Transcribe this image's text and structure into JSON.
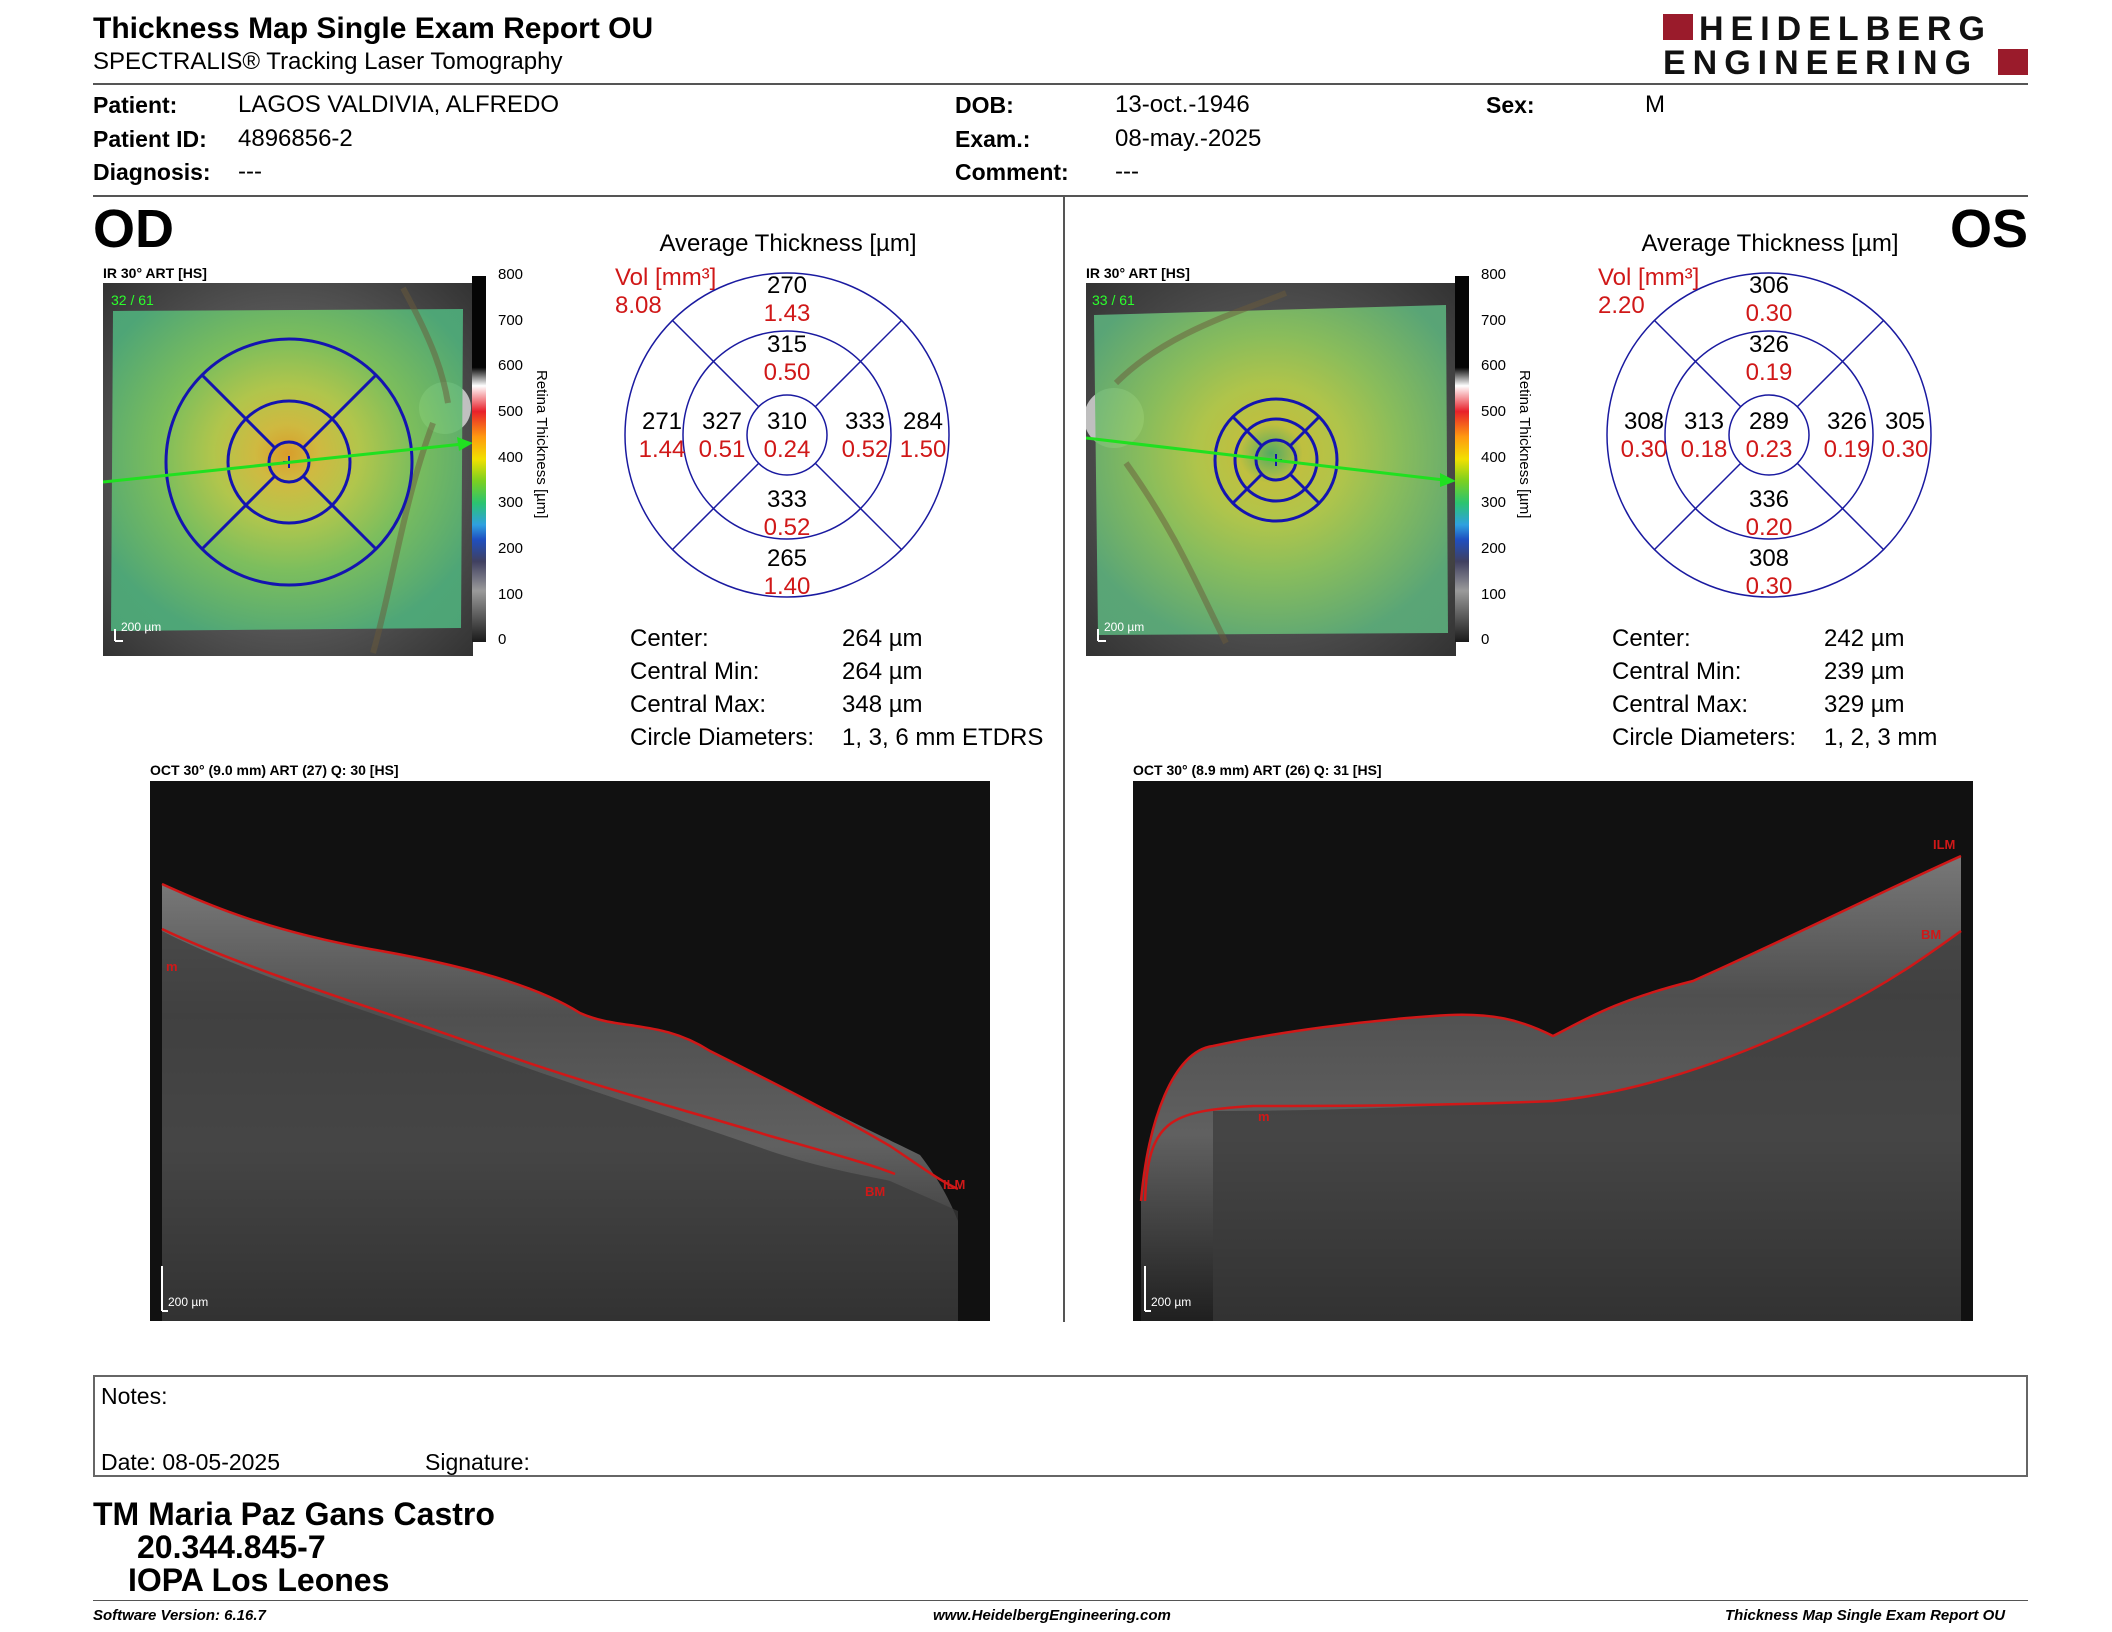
{
  "header": {
    "title": "Thickness Map Single Exam Report OU",
    "subtitle": "SPECTRALIS® Tracking Laser Tomography",
    "logo_line1": "HEIDELBERG",
    "logo_line2": "ENGINEERING"
  },
  "patient": {
    "patient_label": "Patient:",
    "patient_value": "LAGOS VALDIVIA, ALFREDO",
    "id_label": "Patient ID:",
    "id_value": "4896856-2",
    "diagnosis_label": "Diagnosis:",
    "diagnosis_value": "---",
    "dob_label": "DOB:",
    "dob_value": "13-oct.-1946",
    "exam_label": "Exam.:",
    "exam_value": "08-may.-2025",
    "comment_label": "Comment:",
    "comment_value": "---",
    "sex_label": "Sex:",
    "sex_value": "M"
  },
  "od": {
    "eye": "OD",
    "map_label": "IR 30° ART [HS]",
    "map_counter": "32 / 61",
    "map_scale": "200 µm",
    "scale_ticks": [
      "800",
      "700",
      "600",
      "500",
      "400",
      "300",
      "200",
      "100",
      "0"
    ],
    "scale_label": "Retina Thickness [µm]",
    "avg_title": "Average Thickness [µm]",
    "vol_label": "Vol [mm³]",
    "vol_value": "8.08",
    "sectors": {
      "outer_top": [
        "270",
        "1.43"
      ],
      "inner_top": [
        "315",
        "0.50"
      ],
      "outer_left": [
        "271",
        "1.44"
      ],
      "inner_left": [
        "327",
        "0.51"
      ],
      "center": [
        "310",
        "0.24"
      ],
      "inner_right": [
        "333",
        "0.52"
      ],
      "outer_right": [
        "284",
        "1.50"
      ],
      "inner_bottom": [
        "333",
        "0.52"
      ],
      "outer_bottom": [
        "265",
        "1.40"
      ]
    },
    "stats": [
      {
        "label": "Center:",
        "value": "264 µm"
      },
      {
        "label": "Central Min:",
        "value": "264 µm"
      },
      {
        "label": "Central Max:",
        "value": "348 µm"
      },
      {
        "label": "Circle Diameters:",
        "value": "1, 3, 6 mm ETDRS"
      }
    ],
    "oct_label": "OCT 30° (9.0 mm) ART (27) Q: 30 [HS]",
    "oct_scale": "200 µm",
    "ilm": "ILM",
    "bm": "BM",
    "m": "m"
  },
  "os": {
    "eye": "OS",
    "map_label": "IR 30° ART [HS]",
    "map_counter": "33 / 61",
    "map_scale": "200 µm",
    "scale_ticks": [
      "800",
      "700",
      "600",
      "500",
      "400",
      "300",
      "200",
      "100",
      "0"
    ],
    "scale_label": "Retina Thickness [µm]",
    "avg_title": "Average Thickness [µm]",
    "vol_label": "Vol [mm³]",
    "vol_value": "2.20",
    "sectors": {
      "outer_top": [
        "306",
        "0.30"
      ],
      "inner_top": [
        "326",
        "0.19"
      ],
      "outer_left": [
        "308",
        "0.30"
      ],
      "inner_left": [
        "313",
        "0.18"
      ],
      "center": [
        "289",
        "0.23"
      ],
      "inner_right": [
        "326",
        "0.19"
      ],
      "outer_right": [
        "305",
        "0.30"
      ],
      "inner_bottom": [
        "336",
        "0.20"
      ],
      "outer_bottom": [
        "308",
        "0.30"
      ]
    },
    "stats": [
      {
        "label": "Center:",
        "value": "242 µm"
      },
      {
        "label": "Central Min:",
        "value": "239 µm"
      },
      {
        "label": "Central Max:",
        "value": "329 µm"
      },
      {
        "label": "Circle Diameters:",
        "value": "1, 2, 3 mm"
      }
    ],
    "oct_label": "OCT 30° (8.9 mm) ART (26) Q: 31 [HS]",
    "oct_scale": "200 µm",
    "ilm": "ILM",
    "bm": "BM",
    "m": "m"
  },
  "notes": {
    "label": "Notes:",
    "date_label": "Date: 08-05-2025",
    "signature_label": "Signature:"
  },
  "signer": {
    "line1": "TM Maria Paz Gans Castro",
    "line2": "20.344.845-7",
    "line3": "IOPA Los Leones"
  },
  "footer": {
    "software": "Software Version: 6.16.7",
    "url": "www.HeidelbergEngineering.com",
    "report": "Thickness Map Single Exam Report OU"
  },
  "colors": {
    "accent_red": "#d01818",
    "logo_red": "#9a1b2b",
    "grid_blue": "#1a1aa0"
  }
}
